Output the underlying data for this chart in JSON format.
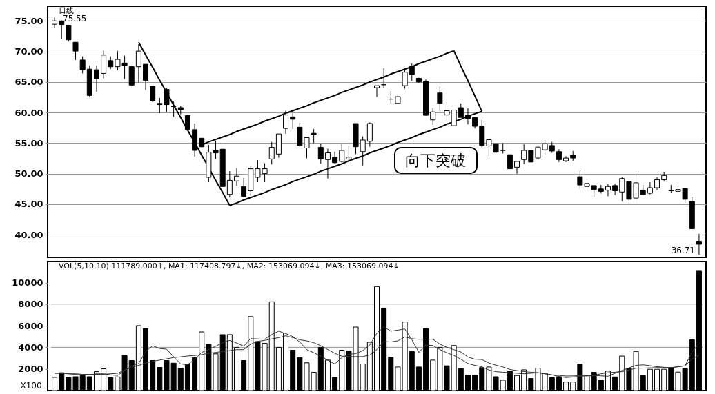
{
  "chart_data": [
    {
      "type": "candlestick",
      "title": "日线",
      "color": "#000000",
      "grid": "y",
      "tick_labels": "y",
      "categories": [
        null,
        null,
        null,
        null,
        null,
        null,
        null,
        null,
        null,
        null,
        null,
        null,
        null,
        null,
        null,
        null,
        null,
        null,
        null,
        null,
        null,
        null,
        null,
        null,
        null,
        null,
        null,
        null,
        null,
        null,
        null,
        null,
        null,
        null,
        null,
        null,
        null,
        null,
        null,
        null,
        null,
        null,
        null,
        null,
        null,
        null,
        null,
        null,
        null,
        null,
        null,
        null,
        null,
        null,
        null,
        null,
        null,
        null,
        null,
        null,
        null,
        null,
        null,
        null,
        null,
        null,
        null,
        null,
        null,
        null,
        null,
        null,
        null,
        null,
        null,
        null,
        null,
        null,
        null,
        null,
        null,
        null,
        null,
        null,
        null,
        null,
        null,
        null,
        null,
        null,
        null,
        null,
        null
      ],
      "ohlc": [
        [
          74.45,
          75.55,
          73.9,
          75.0
        ],
        [
          75.0,
          75.1,
          72.1,
          74.4
        ],
        [
          74.3,
          74.3,
          71.6,
          71.9
        ],
        [
          71.5,
          71.5,
          68.6,
          70.05
        ],
        [
          68.6,
          69.2,
          66.4,
          67.0
        ],
        [
          67.1,
          67.7,
          62.5,
          62.8
        ],
        [
          67.0,
          67.7,
          63.4,
          65.5
        ],
        [
          66.4,
          70.1,
          65.6,
          69.4
        ],
        [
          68.5,
          69.2,
          67.1,
          67.5
        ],
        [
          67.5,
          70.1,
          66.9,
          68.7
        ],
        [
          68.1,
          69.3,
          65.5,
          67.65
        ],
        [
          67.5,
          67.6,
          64.4,
          64.5
        ],
        [
          67.5,
          71.2,
          64.9,
          70.05
        ],
        [
          67.9,
          67.9,
          63.7,
          65.25
        ],
        [
          64.3,
          64.3,
          61.7,
          61.9
        ],
        [
          61.5,
          62.4,
          59.9,
          61.3
        ],
        [
          63.8,
          64.0,
          60.1,
          61.3
        ],
        [
          61.0,
          61.8,
          59.3,
          61.0
        ],
        [
          60.8,
          61.1,
          59.7,
          60.45
        ],
        [
          59.5,
          59.6,
          57.1,
          57.2
        ],
        [
          57.2,
          58.2,
          52.8,
          53.8
        ],
        [
          55.8,
          55.8,
          54.3,
          54.4
        ],
        [
          49.4,
          54.7,
          48.6,
          53.5
        ],
        [
          53.8,
          55.4,
          52.4,
          53.4
        ],
        [
          54.0,
          54.0,
          47.9,
          47.9
        ],
        [
          46.6,
          50.4,
          46.1,
          48.9
        ],
        [
          48.8,
          50.9,
          48.0,
          49.6
        ],
        [
          47.9,
          49.3,
          46.1,
          46.3
        ],
        [
          47.2,
          51.2,
          46.4,
          50.8
        ],
        [
          49.4,
          52.2,
          48.6,
          50.8
        ],
        [
          50.0,
          51.7,
          48.6,
          50.8
        ],
        [
          52.4,
          55.2,
          51.5,
          54.3
        ],
        [
          53.2,
          56.5,
          52.6,
          56.5
        ],
        [
          57.4,
          60.3,
          56.5,
          59.6
        ],
        [
          59.3,
          59.9,
          57.3,
          58.9
        ],
        [
          57.6,
          58.3,
          54.4,
          54.6
        ],
        [
          54.2,
          55.9,
          52.5,
          55.9
        ],
        [
          56.6,
          57.3,
          55.0,
          56.35
        ],
        [
          54.3,
          54.85,
          51.65,
          52.4
        ],
        [
          52.3,
          54.1,
          49.2,
          53.4
        ],
        [
          52.7,
          53.6,
          51.65,
          51.8
        ],
        [
          52.0,
          54.85,
          51.8,
          53.8
        ],
        [
          52.4,
          54.5,
          51.8,
          52.7
        ],
        [
          58.2,
          58.2,
          53.2,
          54.4
        ],
        [
          53.6,
          56.1,
          51.35,
          55.5
        ],
        [
          55.3,
          58.4,
          54.4,
          58.2
        ],
        [
          64.06,
          64.4,
          62.55,
          64.4
        ],
        [
          64.55,
          67.25,
          64.06,
          64.55
        ],
        [
          62.2,
          63.5,
          61.5,
          62.2
        ],
        [
          61.5,
          63.0,
          61.5,
          62.6
        ],
        [
          64.4,
          67.25,
          63.9,
          66.6
        ],
        [
          67.6,
          68.0,
          65.2,
          66.2
        ],
        [
          65.6,
          65.7,
          64.9,
          65.0
        ],
        [
          65.1,
          65.4,
          59.5,
          59.55
        ],
        [
          58.8,
          60.75,
          58.0,
          60.1
        ],
        [
          63.2,
          64.25,
          60.3,
          61.5
        ],
        [
          59.6,
          61.7,
          58.6,
          60.3
        ],
        [
          57.85,
          60.4,
          57.85,
          60.4
        ],
        [
          60.8,
          61.5,
          59.2,
          59.2
        ],
        [
          59.55,
          60.7,
          58.05,
          59.0
        ],
        [
          59.2,
          59.2,
          57.4,
          57.75
        ],
        [
          57.8,
          58.8,
          54.3,
          54.6
        ],
        [
          54.55,
          55.55,
          52.85,
          55.55
        ],
        [
          54.9,
          54.9,
          53.3,
          53.5
        ],
        [
          53.8,
          55.0,
          53.3,
          53.8
        ],
        [
          53.1,
          53.1,
          50.8,
          50.8
        ],
        [
          51.05,
          52.0,
          50.0,
          52.0
        ],
        [
          52.3,
          54.8,
          51.55,
          53.8
        ],
        [
          53.8,
          53.8,
          51.9,
          51.9
        ],
        [
          52.55,
          54.35,
          52.55,
          54.35
        ],
        [
          53.9,
          55.5,
          53.05,
          54.9
        ],
        [
          54.6,
          55.2,
          53.4,
          53.7
        ],
        [
          53.6,
          54.0,
          51.9,
          52.3
        ],
        [
          52.1,
          52.85,
          51.9,
          52.55
        ],
        [
          53.05,
          53.7,
          52.1,
          52.55
        ],
        [
          49.5,
          50.5,
          47.5,
          48.15
        ],
        [
          47.9,
          49.2,
          47.5,
          48.4
        ],
        [
          48.05,
          48.05,
          46.2,
          47.4
        ],
        [
          47.5,
          48.15,
          46.75,
          47.1
        ],
        [
          47.3,
          48.35,
          46.3,
          47.9
        ],
        [
          48.05,
          48.35,
          46.5,
          47.2
        ],
        [
          47.0,
          49.5,
          45.5,
          49.2
        ],
        [
          48.7,
          48.7,
          45.5,
          45.8
        ],
        [
          46.0,
          50.2,
          45.0,
          48.5
        ],
        [
          47.3,
          48.15,
          46.5,
          46.6
        ],
        [
          46.8,
          48.6,
          46.6,
          47.7
        ],
        [
          47.7,
          49.5,
          47.3,
          49.0
        ],
        [
          49.0,
          50.3,
          48.7,
          49.7
        ],
        [
          47.2,
          48.15,
          46.8,
          47.2
        ],
        [
          47.1,
          48.05,
          46.8,
          47.4
        ],
        [
          47.6,
          47.6,
          45.2,
          45.8
        ],
        [
          45.45,
          46.2,
          41.0,
          41.0
        ],
        [
          38.95,
          40.15,
          36.71,
          38.45
        ]
      ],
      "series": [
        {
          "type": "line",
          "color": "#000000",
          "values": [
            null,
            null,
            null,
            null,
            null,
            null,
            null,
            null,
            null,
            null,
            null,
            null,
            71.5,
            69.4,
            67.4,
            65.3,
            63.3,
            61.2,
            59.2,
            57.1,
            55.1,
            53.0,
            51.0,
            48.9,
            46.9,
            44.8,
            null,
            null,
            null,
            null,
            null,
            null,
            null,
            null,
            null,
            null,
            null,
            null,
            null,
            null,
            null,
            null,
            null,
            null,
            null,
            null,
            null,
            null,
            null,
            null,
            null,
            null,
            null,
            null,
            null,
            null,
            null,
            null,
            null,
            null,
            null,
            null,
            null,
            null,
            null,
            null,
            null,
            null,
            null,
            null,
            null,
            null,
            null,
            null,
            null,
            null,
            null,
            null,
            null,
            null,
            null,
            null,
            null,
            null,
            null,
            null,
            null,
            null,
            null,
            null,
            null,
            null,
            null
          ]
        },
        {
          "type": "line",
          "color": "#000000",
          "values": [
            null,
            null,
            null,
            null,
            null,
            null,
            null,
            null,
            null,
            null,
            null,
            null,
            null,
            null,
            null,
            null,
            null,
            null,
            null,
            null,
            null,
            null,
            null,
            null,
            null,
            44.8,
            45.2,
            45.7,
            46.1,
            46.5,
            46.9,
            47.4,
            47.8,
            48.2,
            48.7,
            49.1,
            49.5,
            49.9,
            50.4,
            50.8,
            51.2,
            51.6,
            52.1,
            52.5,
            52.9,
            53.4,
            53.8,
            54.2,
            54.6,
            55.1,
            55.5,
            55.9,
            56.4,
            56.8,
            57.2,
            57.6,
            58.1,
            58.5,
            58.9,
            59.4,
            59.8,
            60.2,
            null,
            null,
            null,
            null,
            null,
            null,
            null,
            null,
            null,
            null,
            null,
            null,
            null,
            null,
            null,
            null,
            null,
            null,
            null,
            null,
            null,
            null,
            null,
            null,
            null,
            null,
            null,
            null,
            null,
            null,
            null
          ]
        },
        {
          "type": "line",
          "color": "#000000",
          "values": [
            null,
            null,
            null,
            null,
            null,
            null,
            null,
            null,
            null,
            null,
            null,
            null,
            null,
            null,
            null,
            null,
            null,
            null,
            null,
            null,
            null,
            54.7,
            55.2,
            55.6,
            56.0,
            56.4,
            56.9,
            57.3,
            57.7,
            58.1,
            58.6,
            59.0,
            59.4,
            59.9,
            60.3,
            60.7,
            61.1,
            61.6,
            62.0,
            62.4,
            62.8,
            63.3,
            63.7,
            64.1,
            64.5,
            65.0,
            65.4,
            65.8,
            66.3,
            66.7,
            67.1,
            67.5,
            68.0,
            68.4,
            68.8,
            69.2,
            69.7,
            70.1,
            null,
            null,
            null,
            null,
            null,
            null,
            null,
            null,
            null,
            null,
            null,
            null,
            null,
            null,
            null,
            null,
            null,
            null,
            null,
            null,
            null,
            null,
            null,
            null,
            null,
            null,
            null,
            null,
            null,
            null,
            null,
            null,
            null,
            null,
            null
          ]
        },
        {
          "type": "line",
          "color": "#000000",
          "values": [
            null,
            null,
            null,
            null,
            null,
            null,
            null,
            null,
            null,
            null,
            null,
            null,
            null,
            null,
            null,
            null,
            null,
            null,
            null,
            null,
            null,
            null,
            null,
            null,
            null,
            null,
            null,
            null,
            null,
            null,
            null,
            null,
            null,
            null,
            null,
            null,
            null,
            null,
            null,
            null,
            null,
            null,
            null,
            null,
            null,
            null,
            null,
            null,
            null,
            null,
            null,
            null,
            null,
            null,
            null,
            null,
            null,
            70.1,
            67.6,
            65.2,
            62.7,
            60.2,
            null,
            null,
            null,
            null,
            null,
            null,
            null,
            null,
            null,
            null,
            null,
            null,
            null,
            null,
            null,
            null,
            null,
            null,
            null,
            null,
            null,
            null,
            null,
            null,
            null,
            null,
            null,
            null,
            null,
            null,
            null
          ]
        }
      ],
      "ylim": [
        36.3,
        77.4
      ],
      "yticks": [
        {
          "value": 40,
          "label": "40.00"
        },
        {
          "value": 45,
          "label": "45.00"
        },
        {
          "value": 50,
          "label": "50.00"
        },
        {
          "value": 55,
          "label": "55.00"
        },
        {
          "value": 60,
          "label": "60.00"
        },
        {
          "value": 65,
          "label": "65.00"
        },
        {
          "value": 70,
          "label": "70.00"
        },
        {
          "value": 75,
          "label": "75.00"
        }
      ],
      "annotations": [
        "75.55",
        "36.71",
        "向下突破"
      ]
    },
    {
      "type": "bar",
      "title": "VOL(5,10,10) 111789.000↑, MA1: 117408.797↓, MA2: 153069.094↓, MA3: 153069.094↓",
      "ylabel": "X100",
      "tick_labels": "y",
      "categories": [
        null,
        null,
        null,
        null,
        null,
        null,
        null,
        null,
        null,
        null,
        null,
        null,
        null,
        null,
        null,
        null,
        null,
        null,
        null,
        null,
        null,
        null,
        null,
        null,
        null,
        null,
        null,
        null,
        null,
        null,
        null,
        null,
        null,
        null,
        null,
        null,
        null,
        null,
        null,
        null,
        null,
        null,
        null,
        null,
        null,
        null,
        null,
        null,
        null,
        null,
        null,
        null,
        null,
        null,
        null,
        null,
        null,
        null,
        null,
        null,
        null,
        null,
        null,
        null,
        null,
        null,
        null,
        null,
        null,
        null,
        null,
        null,
        null,
        null,
        null,
        null,
        null,
        null,
        null,
        null,
        null,
        null,
        null,
        null,
        null,
        null,
        null,
        null,
        null,
        null,
        null,
        null,
        null
      ],
      "series": [
        {
          "type": "bar",
          "color": "#000000",
          "values": [
            1220,
            1650,
            1220,
            1280,
            1370,
            1280,
            1750,
            2010,
            1180,
            1260,
            3250,
            2780,
            6010,
            5750,
            2780,
            2140,
            2780,
            2540,
            2070,
            2400,
            3040,
            5430,
            4280,
            3400,
            5180,
            5180,
            4000,
            2780,
            6850,
            4540,
            4370,
            8220,
            4000,
            5330,
            3740,
            3040,
            2570,
            1690,
            4000,
            2820,
            1220,
            3740,
            3680,
            5880,
            2460,
            4470,
            9630,
            7640,
            3100,
            2180,
            6350,
            3620,
            2180,
            5750,
            2820,
            4000,
            2290,
            4170,
            2010,
            1430,
            1430,
            2120,
            2180,
            1280,
            960,
            1820,
            1390,
            1920,
            1110,
            2070,
            1600,
            1180,
            1280,
            790,
            790,
            2460,
            1390,
            1690,
            960,
            1800,
            1260,
            3190,
            2070,
            3620,
            1370,
            1970,
            1970,
            1970,
            2120,
            1710,
            2070,
            4690,
            11060
          ],
          "colors": [
            "#ffffff",
            "#000000",
            "#000000",
            "#000000",
            "#000000",
            "#000000",
            "#ffffff",
            "#ffffff",
            "#000000",
            "#ffffff",
            "#000000",
            "#000000",
            "#ffffff",
            "#000000",
            "#000000",
            "#000000",
            "#000000",
            "#000000",
            "#000000",
            "#000000",
            "#000000",
            "#ffffff",
            "#000000",
            "#ffffff",
            "#000000",
            "#ffffff",
            "#ffffff",
            "#000000",
            "#ffffff",
            "#000000",
            "#ffffff",
            "#ffffff",
            "#ffffff",
            "#ffffff",
            "#000000",
            "#000000",
            "#ffffff",
            "#ffffff",
            "#000000",
            "#ffffff",
            "#000000",
            "#ffffff",
            "#000000",
            "#ffffff",
            "#ffffff",
            "#ffffff",
            "#ffffff",
            "#000000",
            "#000000",
            "#ffffff",
            "#ffffff",
            "#000000",
            "#000000",
            "#000000",
            "#ffffff",
            "#ffffff",
            "#000000",
            "#ffffff",
            "#000000",
            "#000000",
            "#000000",
            "#000000",
            "#ffffff",
            "#000000",
            "#ffffff",
            "#000000",
            "#ffffff",
            "#ffffff",
            "#000000",
            "#ffffff",
            "#ffffff",
            "#000000",
            "#000000",
            "#ffffff",
            "#ffffff",
            "#000000",
            "#ffffff",
            "#000000",
            "#000000",
            "#ffffff",
            "#000000",
            "#ffffff",
            "#000000",
            "#ffffff",
            "#000000",
            "#ffffff",
            "#ffffff",
            "#ffffff",
            "#000000",
            "#ffffff",
            "#000000",
            "#000000",
            "#000000"
          ]
        },
        {
          "type": "line",
          "color": "#333333",
          "values": [
            1600,
            1600,
            1550,
            1500,
            1450,
            1450,
            1550,
            1550,
            1450,
            1400,
            1850,
            2290,
            2500,
            3600,
            4150,
            3890,
            3830,
            3140,
            2460,
            2400,
            2900,
            3530,
            3790,
            4100,
            4430,
            4640,
            4400,
            4110,
            4810,
            4780,
            4750,
            5200,
            5500,
            5280,
            5000,
            4500,
            3790,
            3500,
            3190,
            2800,
            2460,
            3050,
            3350,
            3420,
            3700,
            4220,
            5300,
            5900,
            5500,
            5600,
            5710,
            4700,
            3530,
            4220,
            4170,
            3800,
            3500,
            3250,
            2900,
            2500,
            2330,
            2200,
            1900,
            1750,
            1700,
            1650,
            1600,
            1550,
            1600,
            1650,
            1550,
            1450,
            1300,
            1200,
            1250,
            1320,
            1350,
            1390,
            1360,
            1320,
            1600,
            1860,
            2100,
            2330,
            2380,
            2300,
            2200,
            2150,
            2120,
            2200,
            2290,
            3570,
            4330
          ]
        },
        {
          "type": "line",
          "color": "#333333",
          "values": [
            1600,
            1600,
            1550,
            1550,
            1500,
            1500,
            1500,
            1500,
            1550,
            1600,
            1900,
            2150,
            2330,
            2550,
            2700,
            2820,
            2940,
            3050,
            3120,
            3200,
            3250,
            3330,
            3450,
            3530,
            3620,
            3700,
            3790,
            3790,
            4300,
            4550,
            4650,
            4780,
            4900,
            5070,
            4900,
            4700,
            4600,
            4430,
            4150,
            3800,
            3450,
            3180,
            3150,
            3140,
            3140,
            3300,
            3790,
            4540,
            4500,
            4600,
            4960,
            4800,
            4750,
            4750,
            4750,
            4300,
            4000,
            3790,
            3570,
            3100,
            2900,
            2870,
            2550,
            2350,
            2180,
            1950,
            1850,
            1760,
            1700,
            1650,
            1550,
            1450,
            1400,
            1340,
            1350,
            1380,
            1400,
            1430,
            1550,
            1650,
            1700,
            1750,
            1900,
            2070,
            2070,
            2100,
            2120,
            2120,
            2120,
            2200,
            2290,
            2930,
            3250
          ]
        }
      ],
      "ylim": [
        0,
        11950
      ],
      "yticks": [
        2000,
        4000,
        6000,
        8000,
        10000
      ],
      "ref_lines": [
        {
          "axis": "y",
          "value": 4000,
          "color": "#999999"
        },
        {
          "axis": "y",
          "value": 8000,
          "color": "#999999"
        }
      ]
    }
  ]
}
